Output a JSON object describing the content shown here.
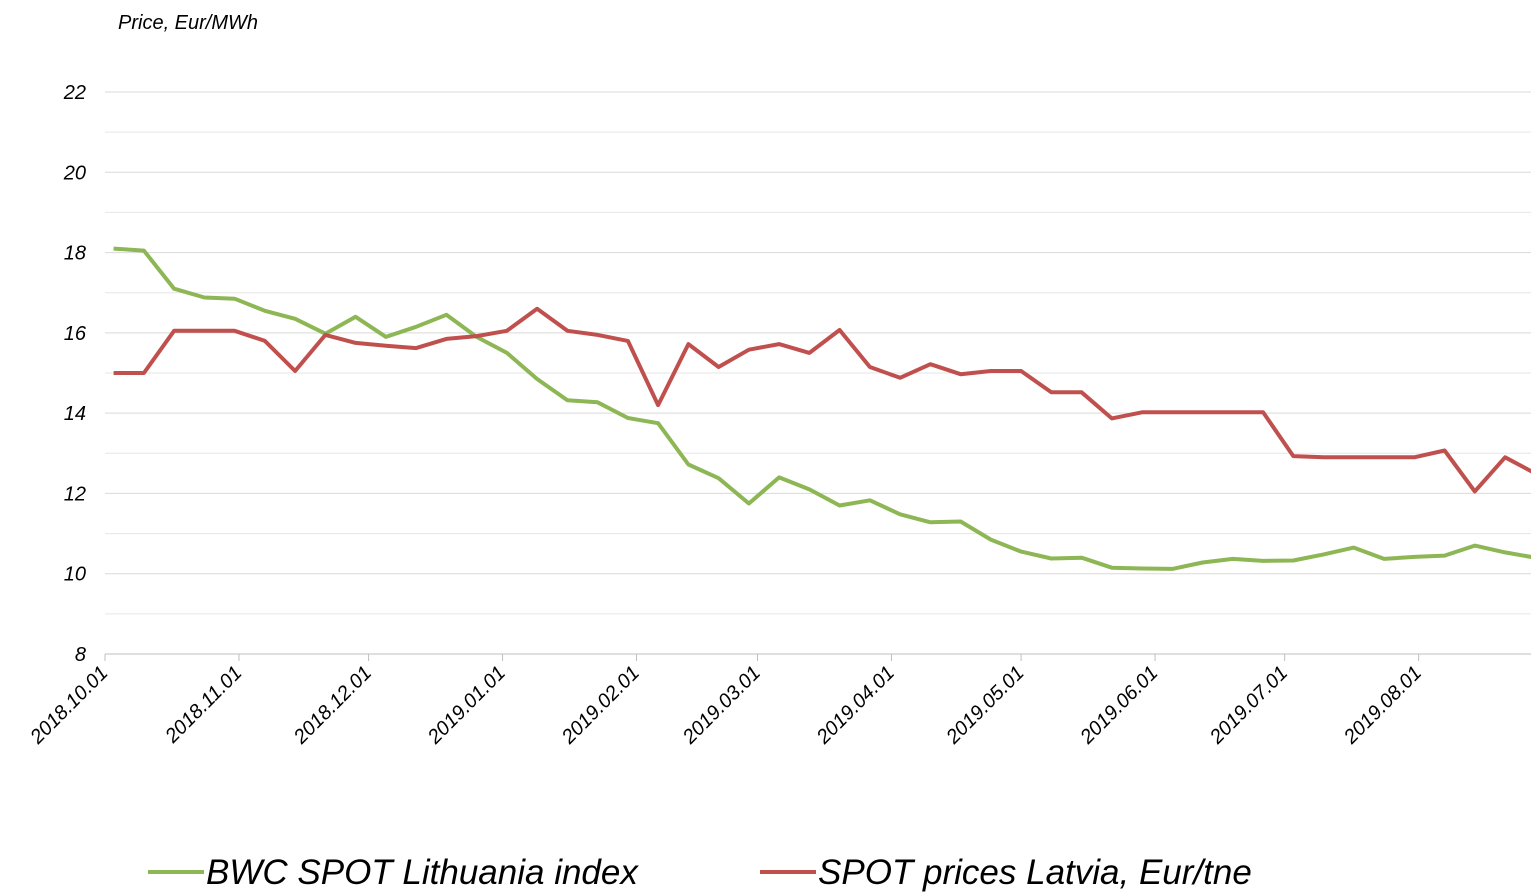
{
  "chart_data": {
    "type": "line",
    "y_axis_label": "Price, Eur/MWh",
    "x": [
      "2018.10.03",
      "2018.10.10",
      "2018.10.17",
      "2018.10.24",
      "2018.10.31",
      "2018.11.07",
      "2018.11.14",
      "2018.11.21",
      "2018.11.28",
      "2018.12.05",
      "2018.12.12",
      "2018.12.19",
      "2018.12.26",
      "2019.01.02",
      "2019.01.09",
      "2019.01.16",
      "2019.01.23",
      "2019.01.30",
      "2019.02.06",
      "2019.02.13",
      "2019.02.20",
      "2019.02.27",
      "2019.03.06",
      "2019.03.13",
      "2019.03.20",
      "2019.03.27",
      "2019.04.03",
      "2019.04.10",
      "2019.04.17",
      "2019.04.24",
      "2019.05.01",
      "2019.05.08",
      "2019.05.15",
      "2019.05.22",
      "2019.05.29",
      "2019.06.05",
      "2019.06.12",
      "2019.06.19",
      "2019.06.26",
      "2019.07.03",
      "2019.07.10",
      "2019.07.17",
      "2019.07.24",
      "2019.07.31",
      "2019.08.07",
      "2019.08.14",
      "2019.08.21",
      "2019.08.28"
    ],
    "series": [
      {
        "name": "BWC SPOT Lithuania index",
        "color": "#8db654",
        "values": [
          18.1,
          18.05,
          17.1,
          16.88,
          16.85,
          16.55,
          16.35,
          15.98,
          16.4,
          15.9,
          16.15,
          16.45,
          15.9,
          15.5,
          14.85,
          14.32,
          14.27,
          13.88,
          13.75,
          12.72,
          12.38,
          11.75,
          12.4,
          12.1,
          11.7,
          11.83,
          11.48,
          11.28,
          11.3,
          10.85,
          10.55,
          10.38,
          10.4,
          10.15,
          10.13,
          10.12,
          10.28,
          10.37,
          10.32,
          10.33,
          10.48,
          10.65,
          10.37,
          10.42,
          10.45,
          10.7,
          10.53,
          10.4
        ]
      },
      {
        "name": "SPOT prices Latvia, Eur/tne",
        "color": "#c0504d",
        "values": [
          15.0,
          15.0,
          16.05,
          16.05,
          16.05,
          15.8,
          15.05,
          15.95,
          15.75,
          15.68,
          15.62,
          15.85,
          15.92,
          16.05,
          16.6,
          16.05,
          15.95,
          15.8,
          14.2,
          15.72,
          15.15,
          15.58,
          15.72,
          15.5,
          16.07,
          15.15,
          14.88,
          15.22,
          14.97,
          15.05,
          15.05,
          14.52,
          14.52,
          13.87,
          14.02,
          14.02,
          14.02,
          14.02,
          14.02,
          12.93,
          12.9,
          12.9,
          12.9,
          12.9,
          13.07,
          12.05,
          12.9,
          12.5
        ]
      }
    ],
    "xlim": [
      "2018.10.01",
      "2019.08.27"
    ],
    "xticks": [
      "2018.10.01",
      "2018.11.01",
      "2018.12.01",
      "2019.01.01",
      "2019.02.01",
      "2019.03.01",
      "2019.04.01",
      "2019.05.01",
      "2019.06.01",
      "2019.07.01",
      "2019.08.01"
    ],
    "ylim": [
      8,
      22
    ],
    "yticks": [
      8,
      10,
      12,
      14,
      16,
      18,
      20,
      22
    ],
    "y_minor_ticks": [
      9,
      11,
      13,
      15,
      17,
      19,
      21
    ],
    "grid": true,
    "legend": "bottom"
  }
}
